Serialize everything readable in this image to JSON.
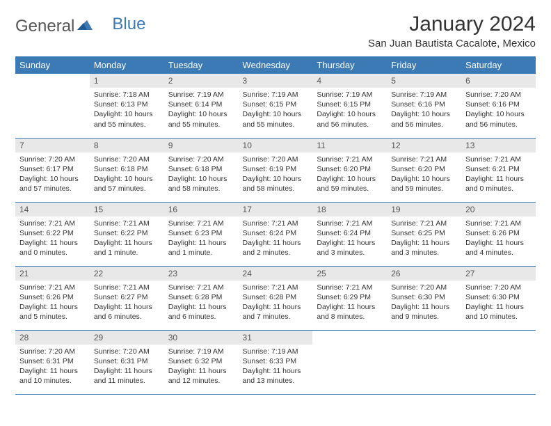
{
  "logo": {
    "part1": "General",
    "part2": "Blue"
  },
  "title": "January 2024",
  "location": "San Juan Bautista Cacalote, Mexico",
  "colors": {
    "header_bg": "#3b7ab5",
    "daynum_bg": "#e8e8e8",
    "border": "#3b7ab5"
  },
  "weekdays": [
    "Sunday",
    "Monday",
    "Tuesday",
    "Wednesday",
    "Thursday",
    "Friday",
    "Saturday"
  ],
  "start_offset": 1,
  "days": [
    {
      "n": "1",
      "sr": "Sunrise: 7:18 AM",
      "ss": "Sunset: 6:13 PM",
      "dl": "Daylight: 10 hours and 55 minutes."
    },
    {
      "n": "2",
      "sr": "Sunrise: 7:19 AM",
      "ss": "Sunset: 6:14 PM",
      "dl": "Daylight: 10 hours and 55 minutes."
    },
    {
      "n": "3",
      "sr": "Sunrise: 7:19 AM",
      "ss": "Sunset: 6:15 PM",
      "dl": "Daylight: 10 hours and 55 minutes."
    },
    {
      "n": "4",
      "sr": "Sunrise: 7:19 AM",
      "ss": "Sunset: 6:15 PM",
      "dl": "Daylight: 10 hours and 56 minutes."
    },
    {
      "n": "5",
      "sr": "Sunrise: 7:19 AM",
      "ss": "Sunset: 6:16 PM",
      "dl": "Daylight: 10 hours and 56 minutes."
    },
    {
      "n": "6",
      "sr": "Sunrise: 7:20 AM",
      "ss": "Sunset: 6:16 PM",
      "dl": "Daylight: 10 hours and 56 minutes."
    },
    {
      "n": "7",
      "sr": "Sunrise: 7:20 AM",
      "ss": "Sunset: 6:17 PM",
      "dl": "Daylight: 10 hours and 57 minutes."
    },
    {
      "n": "8",
      "sr": "Sunrise: 7:20 AM",
      "ss": "Sunset: 6:18 PM",
      "dl": "Daylight: 10 hours and 57 minutes."
    },
    {
      "n": "9",
      "sr": "Sunrise: 7:20 AM",
      "ss": "Sunset: 6:18 PM",
      "dl": "Daylight: 10 hours and 58 minutes."
    },
    {
      "n": "10",
      "sr": "Sunrise: 7:20 AM",
      "ss": "Sunset: 6:19 PM",
      "dl": "Daylight: 10 hours and 58 minutes."
    },
    {
      "n": "11",
      "sr": "Sunrise: 7:21 AM",
      "ss": "Sunset: 6:20 PM",
      "dl": "Daylight: 10 hours and 59 minutes."
    },
    {
      "n": "12",
      "sr": "Sunrise: 7:21 AM",
      "ss": "Sunset: 6:20 PM",
      "dl": "Daylight: 10 hours and 59 minutes."
    },
    {
      "n": "13",
      "sr": "Sunrise: 7:21 AM",
      "ss": "Sunset: 6:21 PM",
      "dl": "Daylight: 11 hours and 0 minutes."
    },
    {
      "n": "14",
      "sr": "Sunrise: 7:21 AM",
      "ss": "Sunset: 6:22 PM",
      "dl": "Daylight: 11 hours and 0 minutes."
    },
    {
      "n": "15",
      "sr": "Sunrise: 7:21 AM",
      "ss": "Sunset: 6:22 PM",
      "dl": "Daylight: 11 hours and 1 minute."
    },
    {
      "n": "16",
      "sr": "Sunrise: 7:21 AM",
      "ss": "Sunset: 6:23 PM",
      "dl": "Daylight: 11 hours and 1 minute."
    },
    {
      "n": "17",
      "sr": "Sunrise: 7:21 AM",
      "ss": "Sunset: 6:24 PM",
      "dl": "Daylight: 11 hours and 2 minutes."
    },
    {
      "n": "18",
      "sr": "Sunrise: 7:21 AM",
      "ss": "Sunset: 6:24 PM",
      "dl": "Daylight: 11 hours and 3 minutes."
    },
    {
      "n": "19",
      "sr": "Sunrise: 7:21 AM",
      "ss": "Sunset: 6:25 PM",
      "dl": "Daylight: 11 hours and 3 minutes."
    },
    {
      "n": "20",
      "sr": "Sunrise: 7:21 AM",
      "ss": "Sunset: 6:26 PM",
      "dl": "Daylight: 11 hours and 4 minutes."
    },
    {
      "n": "21",
      "sr": "Sunrise: 7:21 AM",
      "ss": "Sunset: 6:26 PM",
      "dl": "Daylight: 11 hours and 5 minutes."
    },
    {
      "n": "22",
      "sr": "Sunrise: 7:21 AM",
      "ss": "Sunset: 6:27 PM",
      "dl": "Daylight: 11 hours and 6 minutes."
    },
    {
      "n": "23",
      "sr": "Sunrise: 7:21 AM",
      "ss": "Sunset: 6:28 PM",
      "dl": "Daylight: 11 hours and 6 minutes."
    },
    {
      "n": "24",
      "sr": "Sunrise: 7:21 AM",
      "ss": "Sunset: 6:28 PM",
      "dl": "Daylight: 11 hours and 7 minutes."
    },
    {
      "n": "25",
      "sr": "Sunrise: 7:21 AM",
      "ss": "Sunset: 6:29 PM",
      "dl": "Daylight: 11 hours and 8 minutes."
    },
    {
      "n": "26",
      "sr": "Sunrise: 7:20 AM",
      "ss": "Sunset: 6:30 PM",
      "dl": "Daylight: 11 hours and 9 minutes."
    },
    {
      "n": "27",
      "sr": "Sunrise: 7:20 AM",
      "ss": "Sunset: 6:30 PM",
      "dl": "Daylight: 11 hours and 10 minutes."
    },
    {
      "n": "28",
      "sr": "Sunrise: 7:20 AM",
      "ss": "Sunset: 6:31 PM",
      "dl": "Daylight: 11 hours and 10 minutes."
    },
    {
      "n": "29",
      "sr": "Sunrise: 7:20 AM",
      "ss": "Sunset: 6:31 PM",
      "dl": "Daylight: 11 hours and 11 minutes."
    },
    {
      "n": "30",
      "sr": "Sunrise: 7:19 AM",
      "ss": "Sunset: 6:32 PM",
      "dl": "Daylight: 11 hours and 12 minutes."
    },
    {
      "n": "31",
      "sr": "Sunrise: 7:19 AM",
      "ss": "Sunset: 6:33 PM",
      "dl": "Daylight: 11 hours and 13 minutes."
    }
  ]
}
